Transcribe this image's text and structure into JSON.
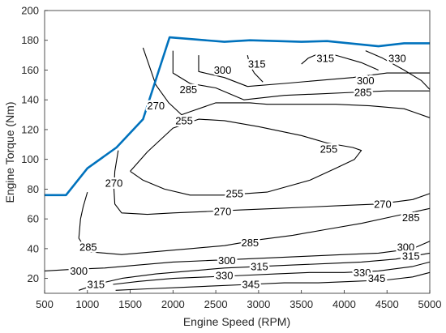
{
  "chart_data": {
    "type": "contour",
    "title": "",
    "xlabel": "Engine Speed (RPM)",
    "ylabel": "Engine Torque (Nm)",
    "xlim": [
      500,
      5000
    ],
    "ylim": [
      10,
      200
    ],
    "xticks": [
      500,
      1000,
      1500,
      2000,
      2500,
      3000,
      3500,
      4000,
      4500,
      5000
    ],
    "yticks": [
      20,
      40,
      60,
      80,
      100,
      120,
      140,
      160,
      180,
      200
    ],
    "grid": false,
    "legend": "none",
    "colors": {
      "max_torque_line": "#0072BD",
      "contour": "#000000",
      "axis": "#262626"
    },
    "max_torque_curve": {
      "x": [
        500,
        750,
        1000,
        1340,
        1650,
        1960,
        2600,
        2900,
        3500,
        3800,
        4400,
        4700,
        5000
      ],
      "y": [
        76,
        76,
        94,
        108,
        127,
        182,
        179,
        180,
        179,
        179.5,
        176,
        178,
        178
      ]
    },
    "contours": [
      {
        "level": "255",
        "label": "255",
        "segments": [
          {
            "x": [
              1500,
              1700,
              2000,
              2300,
              2600,
              3000,
              3500,
              3800,
              4100,
              4200,
              4120,
              3900,
              3600,
              3100,
              2600,
              2200,
              1900,
              1650,
              1500
            ],
            "y": [
              92,
              105,
              121,
              127,
              126,
              122,
              116,
              111,
              108,
              106,
              100,
              94,
              86,
              78,
              76,
              76,
              80,
              86,
              92
            ]
          }
        ],
        "labels": [
          {
            "x": 2130,
            "y": 126
          },
          {
            "x": 3820,
            "y": 107
          },
          {
            "x": 2720,
            "y": 77
          }
        ]
      },
      {
        "level": "270",
        "label": "270",
        "segments": [
          {
            "x": [
              1650,
              1800,
              1950,
              2100,
              2200,
              2500,
              2900,
              3100,
              3500,
              3900,
              4300,
              4700,
              5000
            ],
            "y": [
              175,
              150,
              138,
              130,
              132,
              138,
              138,
              137,
              137,
              137,
              136,
              134,
              128
            ]
          },
          {
            "x": [
              1360,
              1320,
              1310,
              1320,
              1400,
              1700,
              2000,
              2400,
              2800,
              3200,
              3600,
              4000,
              4400,
              4800,
              5000
            ],
            "y": [
              106,
              92,
              80,
              70,
              64,
              63,
              64,
              65,
              66,
              67,
              68,
              69,
              70,
              73,
              77
            ]
          }
        ],
        "labels": [
          {
            "x": 1800,
            "y": 136
          },
          {
            "x": 1310,
            "y": 84
          },
          {
            "x": 2580,
            "y": 65
          },
          {
            "x": 4450,
            "y": 70
          }
        ]
      },
      {
        "level": "285",
        "label": "285",
        "segments": [
          {
            "x": [
              2000,
              2000,
              2200,
              2500,
              2830,
              3300,
              3700,
              4100,
              4500,
              5000
            ],
            "y": [
              173,
              158,
              151,
              148,
              140,
              143,
              144,
              145,
              146,
              146
            ]
          },
          {
            "x": [
              1000,
              950,
              920,
              900,
              1000,
              1400,
              1800,
              2200,
              2600,
              3000,
              3400,
              3800,
              4200,
              4600,
              5000
            ],
            "y": [
              78,
              68,
              60,
              47,
              38,
              36,
              38,
              40,
              42,
              46,
              49,
              53,
              57,
              62,
              67
            ]
          }
        ],
        "labels": [
          {
            "x": 2180,
            "y": 147
          },
          {
            "x": 4220,
            "y": 145
          },
          {
            "x": 1010,
            "y": 41
          },
          {
            "x": 2900,
            "y": 44
          },
          {
            "x": 4780,
            "y": 61
          }
        ]
      },
      {
        "level": "300",
        "label": "300",
        "segments": [
          {
            "x": [
              2300,
              2300,
              2600,
              2870,
              3300,
              3700,
              4100,
              4500,
              4800,
              5000
            ],
            "y": [
              170,
              159,
              155,
              149,
              151,
              153,
              155,
              158,
              158,
              158
            ]
          },
          {
            "x": [
              500,
              800,
              1200,
              1600,
              2000,
              2400,
              2800,
              3200,
              3600,
              4000,
              4400,
              4800,
              5000
            ],
            "y": [
              25,
              26,
              27,
              29,
              31,
              32,
              33,
              34,
              35,
              36,
              37,
              40,
              45
            ]
          }
        ],
        "labels": [
          {
            "x": 2580,
            "y": 160
          },
          {
            "x": 4250,
            "y": 153
          },
          {
            "x": 900,
            "y": 25
          },
          {
            "x": 2630,
            "y": 32
          },
          {
            "x": 4720,
            "y": 41
          }
        ]
      },
      {
        "level": "315",
        "label": "315",
        "segments": [
          {
            "x": [
              2870,
              2900,
              2950,
              3050
            ],
            "y": [
              170,
              163,
              158,
              152
            ]
          },
          {
            "x": [
              3500,
              3580,
              3700,
              3900,
              4200,
              4400
            ],
            "y": [
              164,
              168,
              171,
              170,
              165,
              160
            ]
          },
          {
            "x": [
              900,
              1100,
              1400,
              1800,
              2200,
              2600,
              3000,
              3400,
              3800,
              4200,
              4600,
              5000
            ],
            "y": [
              12,
              16,
              20,
              23,
              25,
              27,
              28,
              29,
              30,
              31,
              33,
              37
            ]
          }
        ],
        "labels": [
          {
            "x": 2980,
            "y": 164
          },
          {
            "x": 3780,
            "y": 168
          },
          {
            "x": 1100,
            "y": 16
          },
          {
            "x": 3010,
            "y": 28
          },
          {
            "x": 4780,
            "y": 35
          }
        ]
      },
      {
        "level": "330",
        "label": "330",
        "segments": [
          {
            "x": [
              4250,
              4450,
              4700,
              4900,
              5000
            ],
            "y": [
              173,
              168,
              160,
              153,
              147
            ]
          },
          {
            "x": [
              1300,
              1600,
              2000,
              2400,
              2800,
              3200,
              3600,
              4000,
              4400,
              4800,
              5000
            ],
            "y": [
              16,
              18,
              20,
              21,
              22,
              23,
              24,
              24,
              25,
              28,
              31
            ]
          }
        ],
        "labels": [
          {
            "x": 4620,
            "y": 168
          },
          {
            "x": 2600,
            "y": 22
          },
          {
            "x": 4210,
            "y": 24
          }
        ]
      },
      {
        "level": "345",
        "label": "345",
        "segments": [
          {
            "x": [
              1330,
              1700,
              2100,
              2500,
              2900,
              3300,
              3700,
              4100,
              4500,
              4800,
              5000
            ],
            "y": [
              12,
              13,
              14,
              15,
              16,
              17,
              17,
              18,
              19,
              21,
              24
            ]
          }
        ],
        "labels": [
          {
            "x": 2910,
            "y": 16
          },
          {
            "x": 4380,
            "y": 20
          }
        ]
      }
    ]
  }
}
